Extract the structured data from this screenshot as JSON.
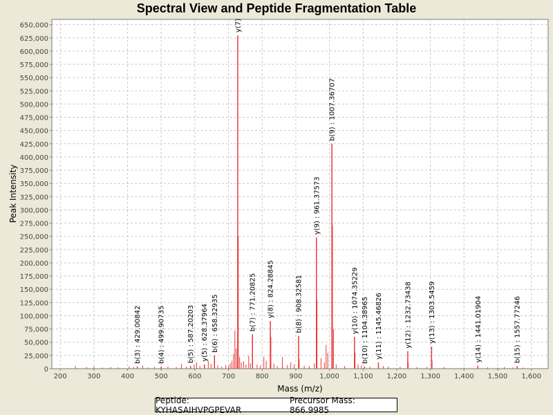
{
  "chart_data": {
    "type": "bar",
    "title": "Spectral View and Peptide Fragmentation Table",
    "xlabel": "Mass (m/z)",
    "ylabel": "Peak Intensity",
    "xlim": [
      175,
      1650
    ],
    "ylim": [
      0,
      660000
    ],
    "xticks": [
      200,
      300,
      400,
      500,
      600,
      700,
      800,
      900,
      1000,
      1100,
      1200,
      1300,
      1400,
      1500,
      1600
    ],
    "xtick_labels": [
      "200",
      "300",
      "400",
      "500",
      "600",
      "700",
      "800",
      "900",
      "1,000",
      "1,100",
      "1,200",
      "1,300",
      "1,400",
      "1,500",
      "1,600"
    ],
    "yticks": [
      0,
      25000,
      50000,
      75000,
      100000,
      125000,
      150000,
      175000,
      200000,
      225000,
      250000,
      275000,
      300000,
      325000,
      350000,
      375000,
      400000,
      425000,
      450000,
      475000,
      500000,
      525000,
      550000,
      575000,
      600000,
      625000,
      650000
    ],
    "ytick_labels": [
      "0",
      "25,000",
      "50,000",
      "75,000",
      "100,000",
      "125,000",
      "150,000",
      "175,000",
      "200,000",
      "225,000",
      "250,000",
      "275,000",
      "300,000",
      "325,000",
      "350,000",
      "375,000",
      "400,000",
      "425,000",
      "450,000",
      "475,000",
      "500,000",
      "525,000",
      "550,000",
      "575,000",
      "600,000",
      "625,000",
      "650,000"
    ],
    "grid": true,
    "annotated_peaks": [
      {
        "x": 429.00842,
        "y": 4000,
        "label": "b(3) : 429.00842"
      },
      {
        "x": 499.90735,
        "y": 4000,
        "label": "b(4) : 499.90735"
      },
      {
        "x": 587.20203,
        "y": 5000,
        "label": "b(5) : 587.20203"
      },
      {
        "x": 628.37964,
        "y": 8000,
        "label": "y(5) : 628.37964"
      },
      {
        "x": 658.32935,
        "y": 25000,
        "label": "b(6) : 658.32935"
      },
      {
        "x": 727.3,
        "y": 630000,
        "label": "y(7)"
      },
      {
        "x": 771.20825,
        "y": 65000,
        "label": "b(7) : 771.20825"
      },
      {
        "x": 824.28845,
        "y": 90000,
        "label": "y(8) : 824.28845"
      },
      {
        "x": 908.32581,
        "y": 62000,
        "label": "b(8) : 908.32581"
      },
      {
        "x": 961.37573,
        "y": 248000,
        "label": "y(9) : 961.37573"
      },
      {
        "x": 1007.36707,
        "y": 425000,
        "label": "b(9) : 1007.36707"
      },
      {
        "x": 1074.35229,
        "y": 60000,
        "label": "y(10) : 1074.35229"
      },
      {
        "x": 1104.38965,
        "y": 4000,
        "label": "b(10) : 1104.38965"
      },
      {
        "x": 1145.46826,
        "y": 12000,
        "label": "y(11) : 1145.46826"
      },
      {
        "x": 1232.73438,
        "y": 33000,
        "label": "y(12) : 1232.73438"
      },
      {
        "x": 1303.5459,
        "y": 42000,
        "label": "y(13) : 1303.5459"
      },
      {
        "x": 1441.01904,
        "y": 6000,
        "label": "y(14) : 1441.01904"
      },
      {
        "x": 1557.77246,
        "y": 5000,
        "label": "b(15) : 1557.77246"
      }
    ],
    "background_peaks": [
      {
        "x": 245,
        "y": 5000
      },
      {
        "x": 278,
        "y": 3000
      },
      {
        "x": 300,
        "y": 4500
      },
      {
        "x": 325,
        "y": 2000
      },
      {
        "x": 350,
        "y": 3000
      },
      {
        "x": 372,
        "y": 2500
      },
      {
        "x": 405,
        "y": 4000
      },
      {
        "x": 418,
        "y": 3000
      },
      {
        "x": 445,
        "y": 6000
      },
      {
        "x": 460,
        "y": 2500
      },
      {
        "x": 480,
        "y": 3500
      },
      {
        "x": 520,
        "y": 4000
      },
      {
        "x": 545,
        "y": 3000
      },
      {
        "x": 560,
        "y": 9000
      },
      {
        "x": 575,
        "y": 4000
      },
      {
        "x": 598,
        "y": 7000
      },
      {
        "x": 605,
        "y": 12000
      },
      {
        "x": 615,
        "y": 5000
      },
      {
        "x": 640,
        "y": 14000
      },
      {
        "x": 648,
        "y": 9000
      },
      {
        "x": 668,
        "y": 6000
      },
      {
        "x": 680,
        "y": 4000
      },
      {
        "x": 692,
        "y": 7000
      },
      {
        "x": 700,
        "y": 5000
      },
      {
        "x": 705,
        "y": 10000
      },
      {
        "x": 710,
        "y": 15000
      },
      {
        "x": 715,
        "y": 28000
      },
      {
        "x": 719,
        "y": 72000
      },
      {
        "x": 723,
        "y": 38000
      },
      {
        "x": 729,
        "y": 250000
      },
      {
        "x": 733,
        "y": 22000
      },
      {
        "x": 738,
        "y": 12000
      },
      {
        "x": 745,
        "y": 14000
      },
      {
        "x": 752,
        "y": 8000
      },
      {
        "x": 760,
        "y": 24000
      },
      {
        "x": 765,
        "y": 10000
      },
      {
        "x": 785,
        "y": 8000
      },
      {
        "x": 795,
        "y": 6000
      },
      {
        "x": 805,
        "y": 22000
      },
      {
        "x": 812,
        "y": 15000
      },
      {
        "x": 826,
        "y": 60000
      },
      {
        "x": 835,
        "y": 9000
      },
      {
        "x": 845,
        "y": 5000
      },
      {
        "x": 860,
        "y": 22000
      },
      {
        "x": 875,
        "y": 7000
      },
      {
        "x": 885,
        "y": 12000
      },
      {
        "x": 895,
        "y": 8000
      },
      {
        "x": 910,
        "y": 18000
      },
      {
        "x": 925,
        "y": 6000
      },
      {
        "x": 940,
        "y": 5000
      },
      {
        "x": 955,
        "y": 10000
      },
      {
        "x": 963,
        "y": 130000
      },
      {
        "x": 975,
        "y": 20000
      },
      {
        "x": 985,
        "y": 12000
      },
      {
        "x": 990,
        "y": 45000
      },
      {
        "x": 995,
        "y": 30000
      },
      {
        "x": 1009,
        "y": 270000
      },
      {
        "x": 1012,
        "y": 75000
      },
      {
        "x": 1020,
        "y": 8000
      },
      {
        "x": 1045,
        "y": 5000
      },
      {
        "x": 1076,
        "y": 30000
      },
      {
        "x": 1085,
        "y": 8000
      },
      {
        "x": 1095,
        "y": 6000
      },
      {
        "x": 1120,
        "y": 4000
      },
      {
        "x": 1160,
        "y": 5000
      },
      {
        "x": 1175,
        "y": 4000
      },
      {
        "x": 1210,
        "y": 3500
      },
      {
        "x": 1234,
        "y": 12000
      },
      {
        "x": 1260,
        "y": 3000
      },
      {
        "x": 1290,
        "y": 3500
      },
      {
        "x": 1305,
        "y": 15000
      },
      {
        "x": 1340,
        "y": 3000
      },
      {
        "x": 1400,
        "y": 2000
      },
      {
        "x": 1470,
        "y": 2500
      },
      {
        "x": 1500,
        "y": 2000
      },
      {
        "x": 1520,
        "y": 3000
      },
      {
        "x": 1545,
        "y": 2500
      },
      {
        "x": 1575,
        "y": 2000
      }
    ],
    "colors": {
      "peak": "#e8393b",
      "plot_background": "#ffffff",
      "grid": "#c8c8c8",
      "page_background": "#ece9d8"
    }
  },
  "footer": {
    "peptide": "Peptide: KYHASAIHVPGPEVAR",
    "precursor_mass": "Precursor Mass: 866.9985"
  }
}
